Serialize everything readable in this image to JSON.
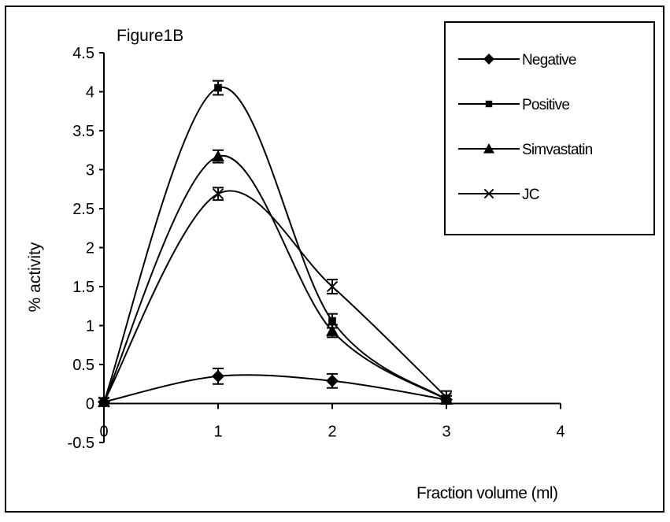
{
  "chart_data": {
    "type": "line",
    "title": "Figure1B",
    "xlabel": "Fraction volume (ml)",
    "ylabel": "% activity",
    "xlim": [
      0,
      4
    ],
    "ylim": [
      -0.5,
      4.5
    ],
    "x_ticks": [
      "0",
      "1",
      "2",
      "3",
      "4"
    ],
    "y_ticks": [
      "-0.5",
      "0",
      "0.5",
      "1",
      "1.5",
      "2",
      "2.5",
      "3",
      "3.5",
      "4",
      "4.5"
    ],
    "x": [
      0,
      1,
      2,
      3
    ],
    "series": [
      {
        "name": "Negative",
        "marker": "diamond",
        "values": [
          0.02,
          0.35,
          0.29,
          0.05
        ],
        "errors": [
          0.05,
          0.1,
          0.09,
          0.05
        ]
      },
      {
        "name": "Positive",
        "marker": "square",
        "values": [
          0.02,
          4.05,
          1.06,
          0.05
        ],
        "errors": [
          0.05,
          0.09,
          0.09,
          0.05
        ]
      },
      {
        "name": "Simvastatin",
        "marker": "triangle",
        "values": [
          0.02,
          3.17,
          0.93,
          0.05
        ],
        "errors": [
          0.05,
          0.08,
          0.08,
          0.05
        ]
      },
      {
        "name": "JC",
        "marker": "x",
        "values": [
          0.02,
          2.69,
          1.5,
          0.08
        ],
        "errors": [
          0.05,
          0.08,
          0.09,
          0.08
        ]
      }
    ],
    "grid": false,
    "legend_position": "top-right",
    "smoothed": true,
    "error_bars": true
  }
}
